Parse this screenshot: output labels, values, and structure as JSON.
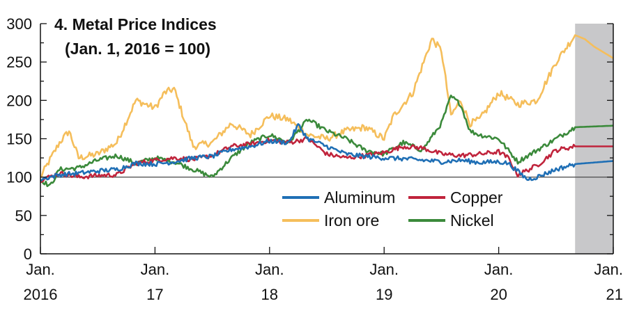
{
  "chart_data": {
    "type": "line",
    "title": "4. Metal Price Indices",
    "subtitle": "(Jan. 1, 2016 = 100)",
    "xlabel": "",
    "ylabel": "",
    "ylim": [
      0,
      300
    ],
    "xlim": [
      "2016-01",
      "2021-01"
    ],
    "y_ticks": [
      "0",
      "50",
      "100",
      "150",
      "200",
      "250",
      "300"
    ],
    "x_ticks": [
      {
        "line1": "Jan.",
        "line2": "2016"
      },
      {
        "line1": "Jan.",
        "line2": "17"
      },
      {
        "line1": "Jan.",
        "line2": "18"
      },
      {
        "line1": "Jan.",
        "line2": "19"
      },
      {
        "line1": "Jan.",
        "line2": "20"
      },
      {
        "line1": "Jan.",
        "line2": "21"
      }
    ],
    "reference_line": 100,
    "shaded_region": {
      "from": "2020-09",
      "to": "2021-01",
      "color": "#c8c8ca"
    },
    "legend_placement": "bottom-right",
    "series": [
      {
        "name": "Aluminum",
        "color": "#1f6fb5",
        "x": [
          "2016-01",
          "2016-03",
          "2016-05",
          "2016-07",
          "2016-09",
          "2016-11",
          "2017-01",
          "2017-03",
          "2017-05",
          "2017-07",
          "2017-09",
          "2017-11",
          "2018-01",
          "2018-03",
          "2018-04",
          "2018-05",
          "2018-07",
          "2018-09",
          "2018-11",
          "2019-01",
          "2019-03",
          "2019-05",
          "2019-07",
          "2019-09",
          "2019-11",
          "2020-01",
          "2020-02",
          "2020-04",
          "2020-05",
          "2020-06",
          "2020-07",
          "2020-09",
          "2020-11",
          "2021-01"
        ],
        "values": [
          97,
          103,
          105,
          108,
          110,
          118,
          117,
          120,
          125,
          127,
          136,
          140,
          147,
          145,
          168,
          150,
          140,
          130,
          127,
          125,
          124,
          122,
          120,
          122,
          119,
          120,
          118,
          97,
          100,
          105,
          110,
          117,
          119,
          121
        ]
      },
      {
        "name": "Copper",
        "color": "#c0243c",
        "x": [
          "2016-01",
          "2016-03",
          "2016-05",
          "2016-07",
          "2016-09",
          "2016-11",
          "2017-01",
          "2017-03",
          "2017-05",
          "2017-07",
          "2017-09",
          "2017-11",
          "2018-01",
          "2018-03",
          "2018-05",
          "2018-07",
          "2018-09",
          "2018-11",
          "2019-01",
          "2019-03",
          "2019-05",
          "2019-07",
          "2019-09",
          "2019-11",
          "2020-01",
          "2020-02",
          "2020-03",
          "2020-05",
          "2020-07",
          "2020-09",
          "2020-11",
          "2021-01"
        ],
        "values": [
          96,
          105,
          100,
          102,
          103,
          118,
          122,
          125,
          123,
          128,
          140,
          143,
          148,
          145,
          150,
          130,
          125,
          128,
          132,
          140,
          138,
          130,
          128,
          130,
          133,
          125,
          103,
          115,
          135,
          140,
          140,
          140
        ]
      },
      {
        "name": "Iron ore",
        "color": "#f5be5b",
        "x": [
          "2016-01",
          "2016-03",
          "2016-04",
          "2016-05",
          "2016-07",
          "2016-09",
          "2016-11",
          "2017-01",
          "2017-02",
          "2017-03",
          "2017-05",
          "2017-07",
          "2017-09",
          "2017-11",
          "2018-01",
          "2018-03",
          "2018-05",
          "2018-07",
          "2018-09",
          "2018-11",
          "2019-01",
          "2019-02",
          "2019-03",
          "2019-04",
          "2019-05",
          "2019-06",
          "2019-07",
          "2019-08",
          "2019-09",
          "2019-10",
          "2019-11",
          "2020-01",
          "2020-03",
          "2020-05",
          "2020-07",
          "2020-09",
          "2020-10",
          "2020-11",
          "2021-01"
        ],
        "values": [
          100,
          145,
          160,
          125,
          130,
          145,
          200,
          190,
          210,
          215,
          140,
          145,
          170,
          155,
          180,
          175,
          155,
          150,
          160,
          165,
          150,
          180,
          195,
          210,
          245,
          280,
          265,
          180,
          200,
          170,
          175,
          210,
          195,
          200,
          250,
          285,
          280,
          270,
          255
        ]
      },
      {
        "name": "Nickel",
        "color": "#3b8a3b",
        "x": [
          "2016-01",
          "2016-02",
          "2016-03",
          "2016-05",
          "2016-07",
          "2016-09",
          "2016-11",
          "2017-01",
          "2017-03",
          "2017-05",
          "2017-07",
          "2017-09",
          "2017-11",
          "2018-01",
          "2018-03",
          "2018-05",
          "2018-07",
          "2018-09",
          "2018-11",
          "2019-01",
          "2019-03",
          "2019-05",
          "2019-07",
          "2019-08",
          "2019-09",
          "2019-10",
          "2019-11",
          "2020-01",
          "2020-03",
          "2020-05",
          "2020-07",
          "2020-09",
          "2020-11",
          "2021-01"
        ],
        "values": [
          97,
          88,
          110,
          112,
          122,
          128,
          118,
          125,
          120,
          110,
          100,
          125,
          145,
          155,
          145,
          175,
          160,
          150,
          135,
          130,
          145,
          135,
          170,
          205,
          195,
          160,
          155,
          150,
          120,
          135,
          150,
          165,
          166,
          167
        ]
      }
    ]
  }
}
